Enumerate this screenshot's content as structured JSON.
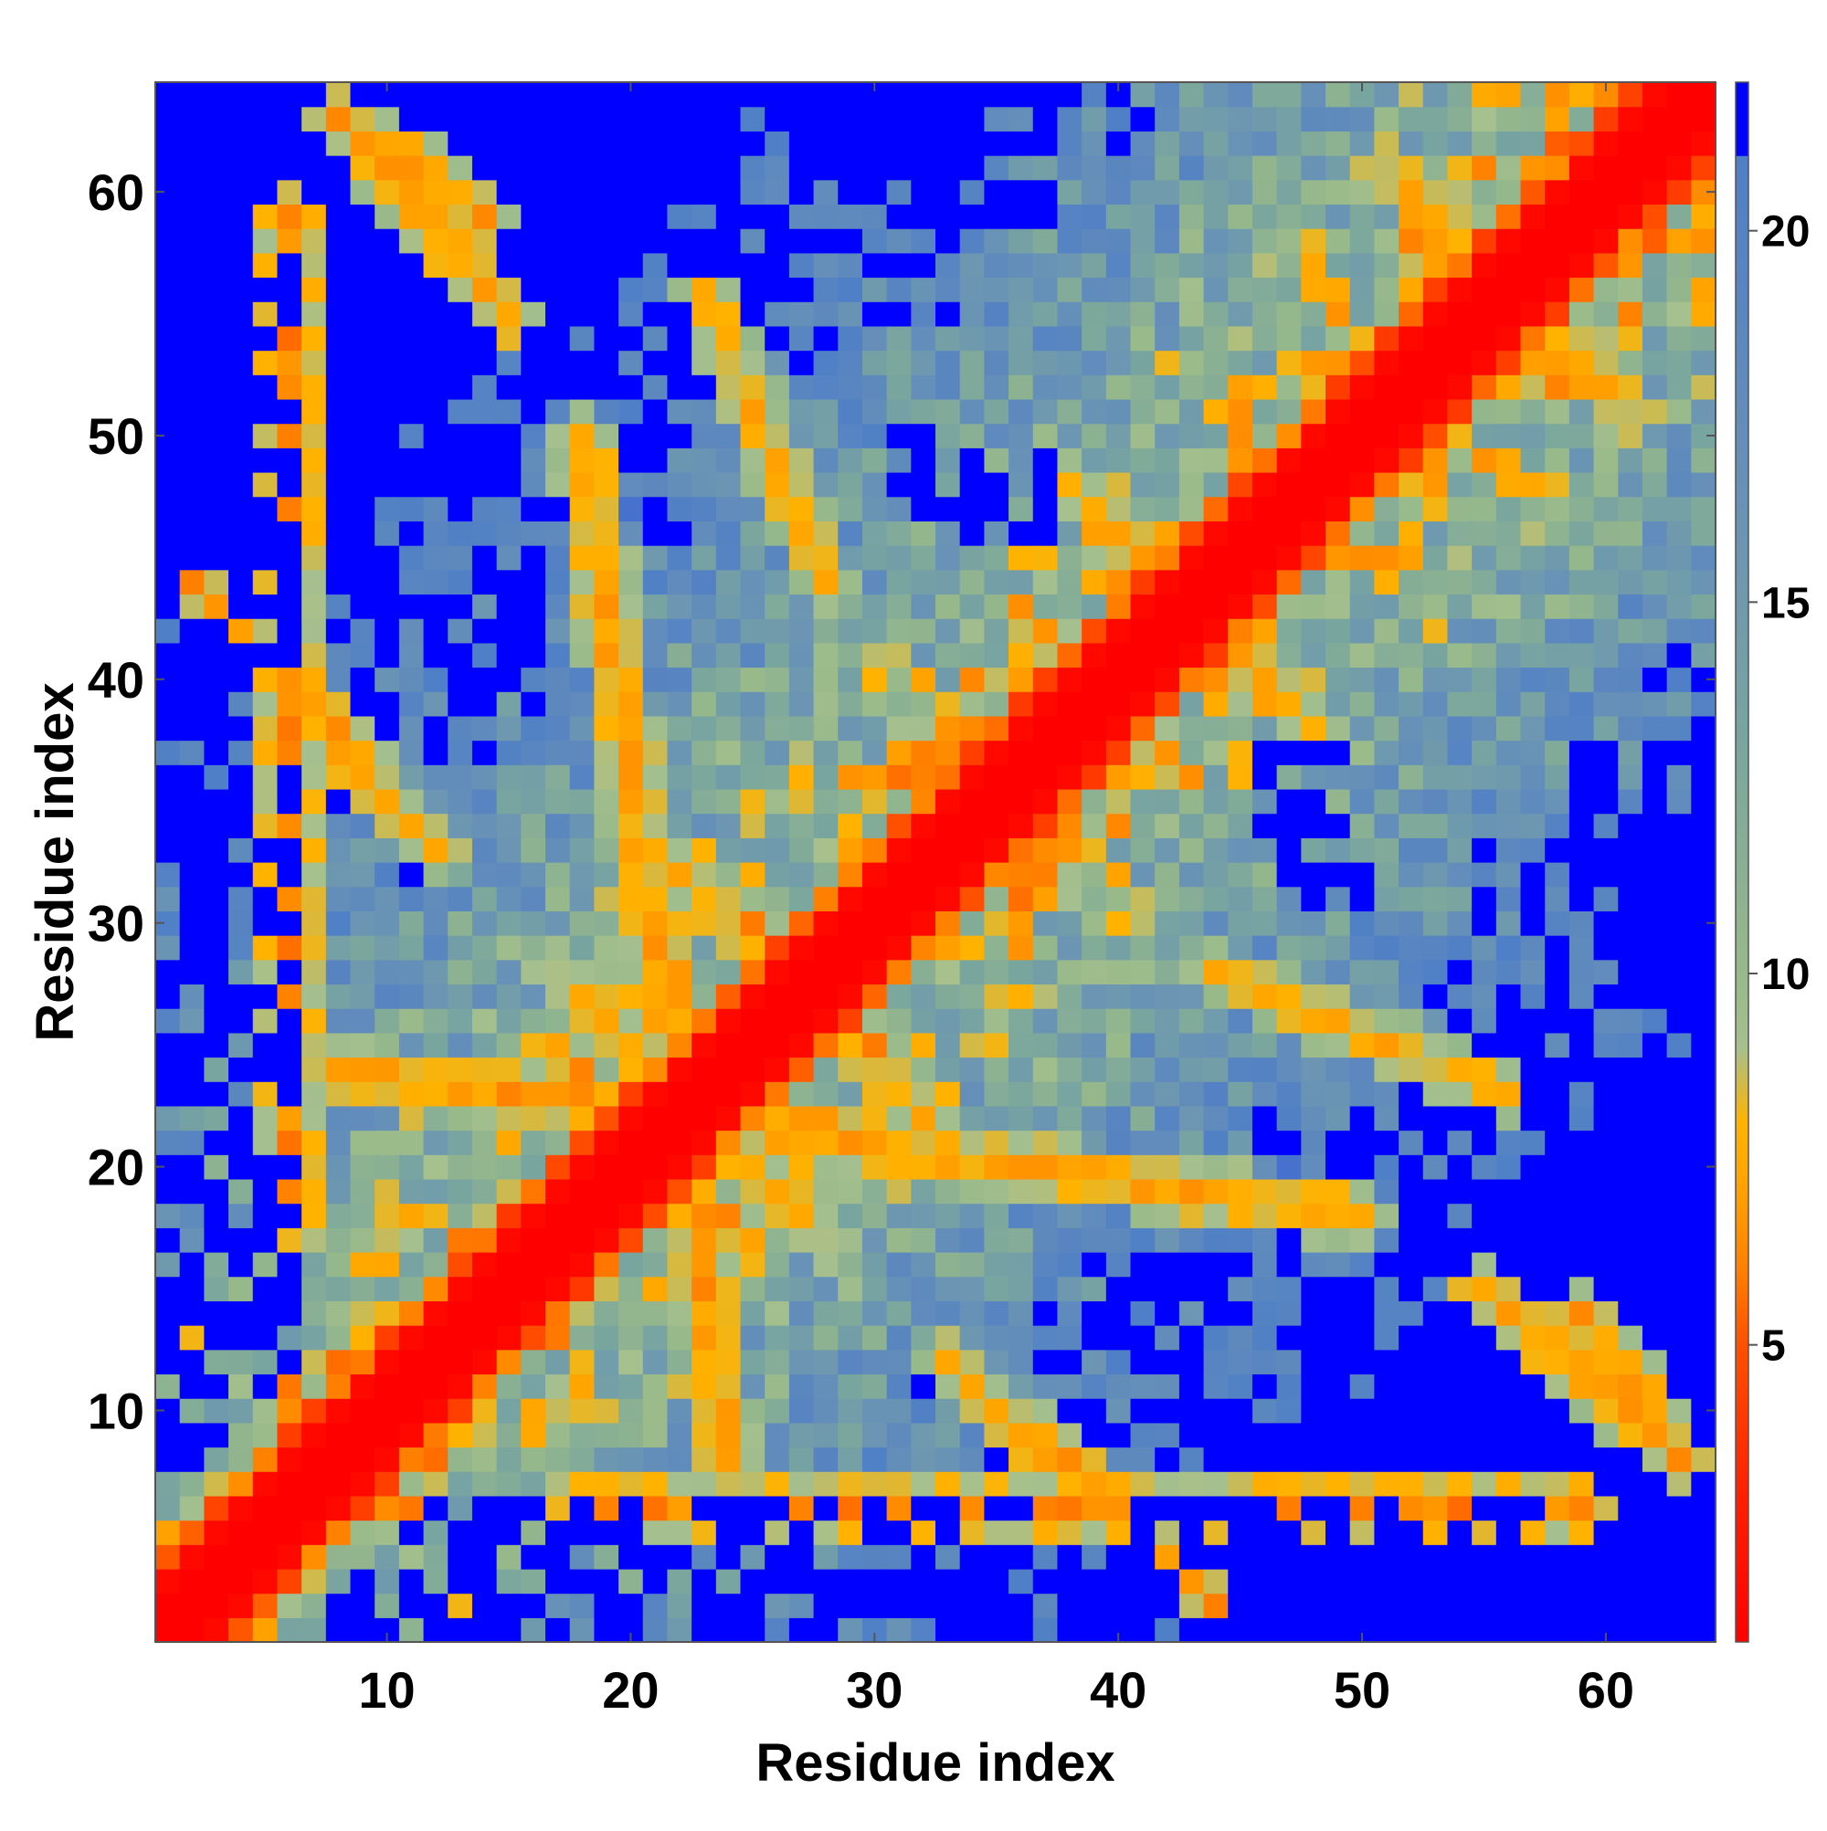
{
  "chart_data": {
    "type": "heatmap",
    "title": "",
    "xlabel": "Residue index",
    "ylabel": "Residue index",
    "n": 64,
    "x_ticks": [
      10,
      20,
      30,
      40,
      50,
      60
    ],
    "y_ticks": [
      10,
      20,
      30,
      40,
      50,
      60
    ],
    "colorbar": {
      "range": [
        1,
        22
      ],
      "ticks": [
        5,
        10,
        15,
        20
      ],
      "stops": [
        {
          "value": 1,
          "color": "#ff0000"
        },
        {
          "value": 3,
          "color": "#ff2000"
        },
        {
          "value": 5,
          "color": "#ff5000"
        },
        {
          "value": 6,
          "color": "#ff7f00"
        },
        {
          "value": 7,
          "color": "#ffa000"
        },
        {
          "value": 8,
          "color": "#ffb300"
        },
        {
          "value": 9,
          "color": "#a6c08e"
        },
        {
          "value": 10,
          "color": "#98b98a"
        },
        {
          "value": 13,
          "color": "#7aa69e"
        },
        {
          "value": 16,
          "color": "#6a94b4"
        },
        {
          "value": 19,
          "color": "#5a86c0"
        },
        {
          "value": 21,
          "color": "#4f7fc6"
        },
        {
          "value": 21.01,
          "color": "#0000ff"
        },
        {
          "value": 22,
          "color": "#0000ff"
        }
      ]
    },
    "description_values": {
      "diagonal_distance": 1,
      "near_diagonal": [
        4,
        7
      ],
      "max_distance_cap": 22
    },
    "contact_segments": [
      [
        6,
        59,
        6,
        18,
        5.5
      ],
      [
        18,
        50,
        24,
        8,
        6
      ],
      [
        29,
        26,
        33,
        21,
        6.5
      ],
      [
        34,
        38,
        38,
        33,
        6
      ],
      [
        7,
        38,
        12,
        33,
        6.5
      ],
      [
        37,
        9,
        44,
        2,
        6
      ],
      [
        44,
        28,
        56,
        23,
        6.5
      ],
      [
        55,
        15,
        63,
        8,
        6
      ],
      [
        52,
        58,
        60,
        52,
        6
      ],
      [
        10,
        62,
        14,
        59,
        6
      ],
      [
        23,
        22,
        27,
        18,
        6.5
      ],
      [
        44,
        42,
        48,
        38,
        6.5
      ]
    ],
    "far_blocks": [
      [
        1,
        40,
        6,
        64
      ],
      [
        1,
        1,
        6,
        34
      ],
      [
        7,
        1,
        36,
        6
      ],
      [
        38,
        1,
        48,
        3
      ],
      [
        49,
        1,
        64,
        4
      ],
      [
        60,
        18,
        64,
        34
      ],
      [
        62,
        64,
        64,
        58
      ],
      [
        16,
        57,
        24,
        64
      ],
      [
        31,
        59,
        37,
        64
      ],
      [
        13,
        42,
        16,
        45
      ],
      [
        32,
        46,
        37,
        49
      ],
      [
        48,
        31,
        50,
        34
      ],
      [
        40,
        13,
        45,
        16
      ]
    ]
  }
}
